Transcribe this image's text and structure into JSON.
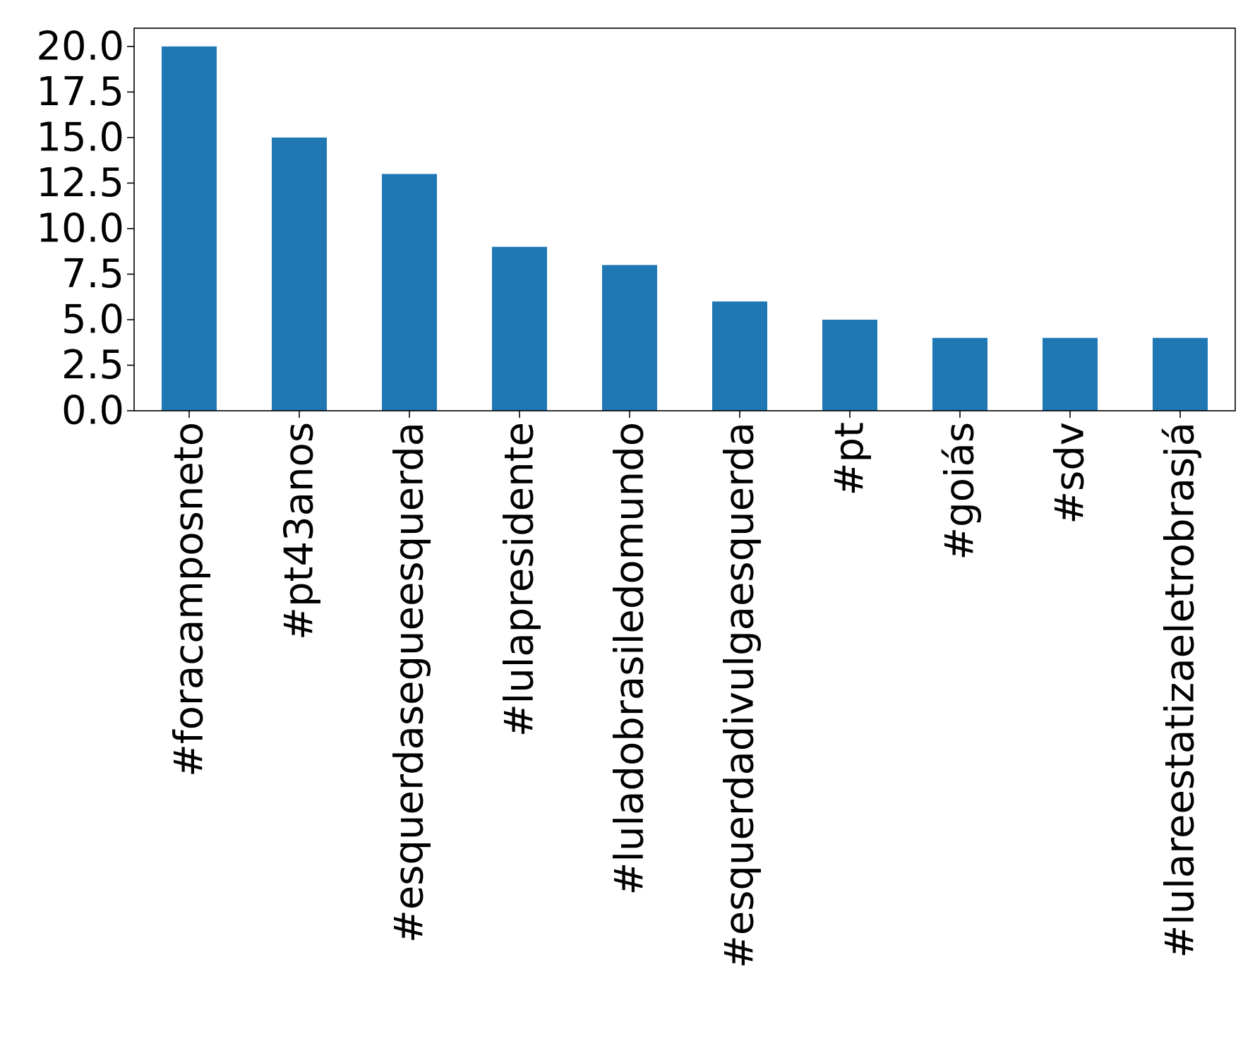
{
  "chart_data": {
    "type": "bar",
    "title": "",
    "xlabel": "",
    "ylabel": "",
    "categories": [
      "#foracamposneto",
      "#pt43anos",
      "#esquerdasegueesquerda",
      "#lulapresidente",
      "#luladobrasiledomundo",
      "#esquerdadivulgaesquerda",
      "#pt",
      "#goiás",
      "#sdv",
      "#lulareestatizaeletrobrasjá"
    ],
    "values": [
      20,
      15,
      13,
      9,
      8,
      6,
      5,
      4,
      4,
      4
    ],
    "ylim": [
      0,
      21
    ],
    "yticks": [
      "0.0",
      "2.5",
      "5.0",
      "7.5",
      "10.0",
      "12.5",
      "15.0",
      "17.5",
      "20.0"
    ],
    "grid": false,
    "legend": "none",
    "bar_color": "#1f77b4"
  }
}
